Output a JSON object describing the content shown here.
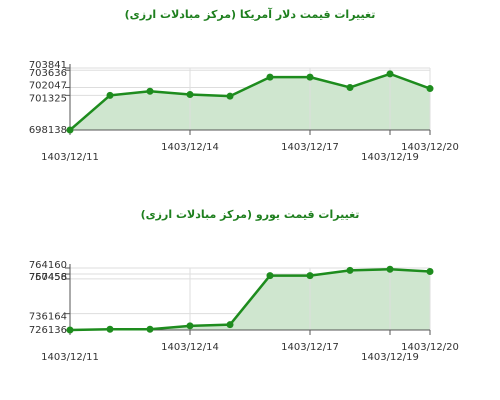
{
  "chart_data": [
    {
      "type": "area",
      "title": "تغییرات قیمت دلار آمریکا (مرکز مبادلات ارزی)",
      "x": [
        "1403/12/11",
        "1403/12/12",
        "1403/12/13",
        "1403/12/14",
        "1403/12/15",
        "1403/12/16",
        "1403/12/17",
        "1403/12/18",
        "1403/12/19",
        "1403/12/20"
      ],
      "values": [
        698138,
        701325,
        701700,
        701400,
        701250,
        703000,
        703000,
        702050,
        703300,
        701950
      ],
      "x_tick_labels": [
        "1403/12/11",
        "1403/12/14",
        "1403/12/17",
        "1403/12/19",
        "1403/12/20"
      ],
      "y_tick_labels": [
        "703841",
        "703636",
        "702047",
        "701325",
        "698138"
      ],
      "ylim": [
        698138,
        703841
      ],
      "color": "#1e8c1e",
      "fill": "#cfe6cf",
      "grid": true
    },
    {
      "type": "area",
      "title": "تغییرات قیمت یورو (مرکز مبادلات ارزی)",
      "x": [
        "1403/12/11",
        "1403/12/12",
        "1403/12/13",
        "1403/12/14",
        "1403/12/15",
        "1403/12/16",
        "1403/12/17",
        "1403/12/18",
        "1403/12/19",
        "1403/12/20"
      ],
      "values": [
        726136,
        726600,
        726600,
        728700,
        729400,
        759500,
        759500,
        762700,
        763400,
        762000
      ],
      "x_tick_labels": [
        "1403/12/11",
        "1403/12/14",
        "1403/12/17",
        "1403/12/19",
        "1403/12/20"
      ],
      "y_tick_labels": [
        "764160",
        "760458",
        "757456",
        "736164",
        "726136"
      ],
      "ylim": [
        726136,
        764160
      ],
      "color": "#1e8c1e",
      "fill": "#cfe6cf",
      "grid": true
    }
  ]
}
